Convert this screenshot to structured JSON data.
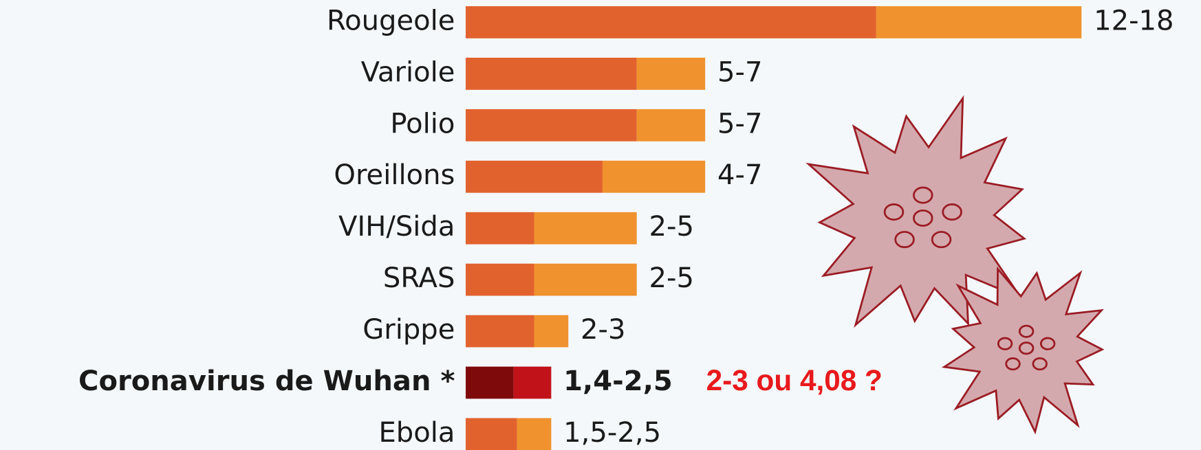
{
  "chart_data": {
    "type": "range_bar",
    "categories": [
      "Rougeole",
      "Variole",
      "Polio",
      "Oreillons",
      "VIH/Sida",
      "SRAS",
      "Grippe",
      "Coronavirus de Wuhan *",
      "Ebola"
    ],
    "low": [
      12,
      5,
      5,
      4,
      2,
      2,
      2,
      1.4,
      1.5
    ],
    "high": [
      18,
      7,
      7,
      7,
      5,
      5,
      3,
      2.5,
      2.5
    ],
    "value_labels": [
      "12-18",
      "5-7",
      "5-7",
      "4-7",
      "2-5",
      "2-5",
      "2-3",
      "1,4-2,5",
      "1,5-2,5"
    ],
    "bar_colors": [
      [
        "#e2622e",
        "#f0922e"
      ],
      [
        "#e2622e",
        "#f0922e"
      ],
      [
        "#e2622e",
        "#f0922e"
      ],
      [
        "#e2622e",
        "#f0922e"
      ],
      [
        "#e2622e",
        "#f0922e"
      ],
      [
        "#e2622e",
        "#f0922e"
      ],
      [
        "#e2622e",
        "#f0922e"
      ],
      [
        "#7f0a0c",
        "#c1121a"
      ],
      [
        "#e2622e",
        "#f0922e"
      ]
    ],
    "label_weights": [
      "normal",
      "normal",
      "normal",
      "normal",
      "normal",
      "normal",
      "normal",
      "bold",
      "normal"
    ],
    "xlim": [
      0,
      18
    ],
    "annotation": "2-3 ou 4,08 ?"
  }
}
